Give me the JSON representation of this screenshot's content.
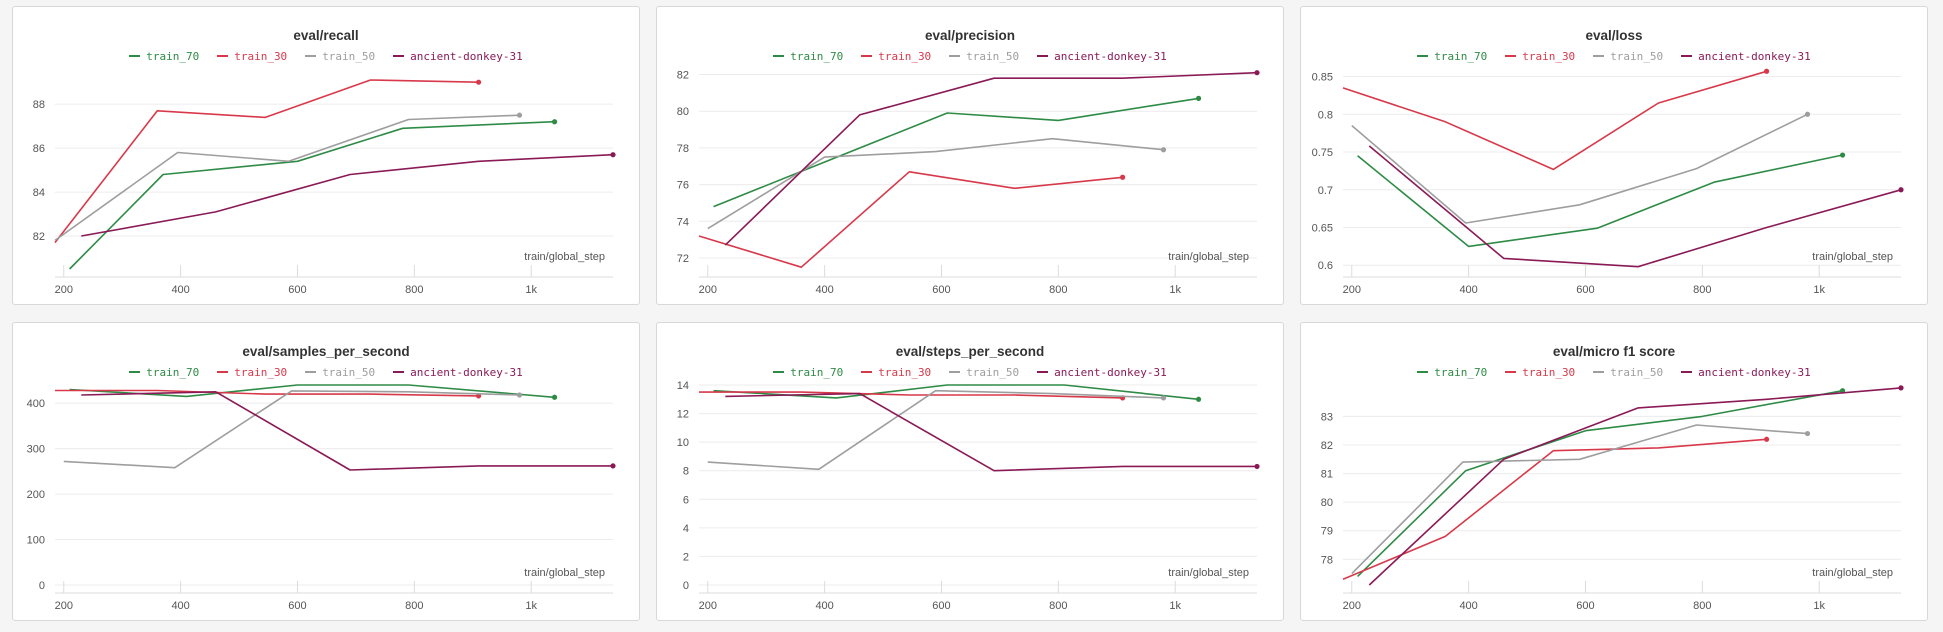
{
  "colors": {
    "train_70": "#2e8b46",
    "train_30": "#d8394a",
    "train_50": "#9e9e9e",
    "ancient-donkey-31": "#8a1a56"
  },
  "chart_data": [
    {
      "type": "line",
      "title": "eval/recall",
      "xlabel": "train/global_step",
      "xlim": [
        185,
        1140
      ],
      "ylim": [
        80.5,
        89.6
      ],
      "xticks": [
        200,
        400,
        600,
        800,
        1000
      ],
      "xtick_labels": [
        "200",
        "400",
        "600",
        "800",
        "1k"
      ],
      "yticks": [
        82,
        84,
        86,
        88
      ],
      "legend": [
        "train_70",
        "train_30",
        "train_50",
        "ancient-donkey-31"
      ],
      "series": [
        {
          "name": "train_70",
          "x": [
            210,
            370,
            600,
            780,
            1040
          ],
          "y": [
            80.5,
            84.8,
            85.4,
            86.9,
            87.2
          ]
        },
        {
          "name": "train_30",
          "x": [
            185,
            360,
            545,
            725,
            910
          ],
          "y": [
            81.7,
            87.7,
            87.4,
            89.1,
            89.0
          ]
        },
        {
          "name": "train_50",
          "x": [
            185,
            395,
            585,
            790,
            980
          ],
          "y": [
            81.8,
            85.8,
            85.4,
            87.3,
            87.5
          ]
        },
        {
          "name": "ancient-donkey-31",
          "x": [
            230,
            460,
            690,
            910,
            1140
          ],
          "y": [
            82.0,
            83.1,
            84.8,
            85.4,
            85.7
          ]
        }
      ]
    },
    {
      "type": "line",
      "title": "eval/precision",
      "xlabel": "train/global_step",
      "xlim": [
        185,
        1140
      ],
      "ylim": [
        71.4,
        82.3
      ],
      "xticks": [
        200,
        400,
        600,
        800,
        1000
      ],
      "xtick_labels": [
        "200",
        "400",
        "600",
        "800",
        "1k"
      ],
      "yticks": [
        72,
        74,
        76,
        78,
        80,
        82
      ],
      "legend": [
        "train_70",
        "train_30",
        "train_50",
        "ancient-donkey-31"
      ],
      "series": [
        {
          "name": "train_70",
          "x": [
            210,
            390,
            610,
            800,
            1040
          ],
          "y": [
            74.8,
            77.1,
            79.9,
            79.5,
            80.7
          ]
        },
        {
          "name": "train_30",
          "x": [
            185,
            360,
            545,
            725,
            910
          ],
          "y": [
            73.2,
            71.5,
            76.7,
            75.8,
            76.4
          ]
        },
        {
          "name": "train_50",
          "x": [
            200,
            400,
            590,
            790,
            980
          ],
          "y": [
            73.6,
            77.5,
            77.8,
            78.5,
            77.9
          ]
        },
        {
          "name": "ancient-donkey-31",
          "x": [
            230,
            460,
            690,
            910,
            1140
          ],
          "y": [
            72.7,
            79.8,
            81.8,
            81.8,
            82.1
          ]
        }
      ]
    },
    {
      "type": "line",
      "title": "eval/loss",
      "xlabel": "train/global_step",
      "xlim": [
        185,
        1140
      ],
      "ylim": [
        0.595,
        0.86
      ],
      "xticks": [
        200,
        400,
        600,
        800,
        1000
      ],
      "xtick_labels": [
        "200",
        "400",
        "600",
        "800",
        "1k"
      ],
      "yticks": [
        0.6,
        0.65,
        0.7,
        0.75,
        0.8,
        0.85
      ],
      "ytick_labels": [
        "0.6",
        "0.65",
        "0.7",
        "0.75",
        "0.8",
        "0.85"
      ],
      "legend": [
        "train_70",
        "train_30",
        "train_50",
        "ancient-donkey-31"
      ],
      "series": [
        {
          "name": "train_70",
          "x": [
            210,
            400,
            620,
            820,
            1040
          ],
          "y": [
            0.745,
            0.625,
            0.649,
            0.71,
            0.746
          ]
        },
        {
          "name": "train_30",
          "x": [
            185,
            360,
            545,
            725,
            910
          ],
          "y": [
            0.835,
            0.79,
            0.727,
            0.815,
            0.857
          ]
        },
        {
          "name": "train_50",
          "x": [
            200,
            395,
            590,
            790,
            980
          ],
          "y": [
            0.785,
            0.656,
            0.68,
            0.728,
            0.8
          ]
        },
        {
          "name": "ancient-donkey-31",
          "x": [
            230,
            460,
            690,
            910,
            1140
          ],
          "y": [
            0.758,
            0.609,
            0.598,
            0.65,
            0.7
          ]
        }
      ]
    },
    {
      "type": "line",
      "title": "eval/samples_per_second",
      "xlabel": "train/global_step",
      "xlim": [
        185,
        1140
      ],
      "ylim": [
        0,
        440
      ],
      "xticks": [
        200,
        400,
        600,
        800,
        1000
      ],
      "xtick_labels": [
        "200",
        "400",
        "600",
        "800",
        "1k"
      ],
      "yticks": [
        0,
        100,
        200,
        300,
        400
      ],
      "legend": [
        "train_70",
        "train_30",
        "train_50",
        "ancient-donkey-31"
      ],
      "series": [
        {
          "name": "train_70",
          "x": [
            210,
            410,
            600,
            790,
            1040
          ],
          "y": [
            430,
            415,
            440,
            440,
            413
          ]
        },
        {
          "name": "train_30",
          "x": [
            185,
            360,
            545,
            725,
            910
          ],
          "y": [
            428,
            428,
            420,
            420,
            416
          ]
        },
        {
          "name": "train_50",
          "x": [
            200,
            390,
            590,
            790,
            980
          ],
          "y": [
            272,
            258,
            427,
            425,
            418
          ]
        },
        {
          "name": "ancient-donkey-31",
          "x": [
            230,
            460,
            690,
            910,
            1140
          ],
          "y": [
            418,
            425,
            253,
            262,
            262
          ]
        }
      ]
    },
    {
      "type": "line",
      "title": "eval/steps_per_second",
      "xlabel": "train/global_step",
      "xlim": [
        185,
        1140
      ],
      "ylim": [
        0,
        14
      ],
      "xticks": [
        200,
        400,
        600,
        800,
        1000
      ],
      "xtick_labels": [
        "200",
        "400",
        "600",
        "800",
        "1k"
      ],
      "yticks": [
        0,
        2,
        4,
        6,
        8,
        10,
        12,
        14
      ],
      "legend": [
        "train_70",
        "train_30",
        "train_50",
        "ancient-donkey-31"
      ],
      "series": [
        {
          "name": "train_70",
          "x": [
            210,
            420,
            610,
            810,
            1040
          ],
          "y": [
            13.6,
            13.1,
            14.0,
            14.0,
            13.0
          ]
        },
        {
          "name": "train_30",
          "x": [
            185,
            360,
            545,
            725,
            910
          ],
          "y": [
            13.5,
            13.5,
            13.3,
            13.3,
            13.1
          ]
        },
        {
          "name": "train_50",
          "x": [
            200,
            390,
            590,
            790,
            980
          ],
          "y": [
            8.6,
            8.1,
            13.6,
            13.4,
            13.1
          ]
        },
        {
          "name": "ancient-donkey-31",
          "x": [
            230,
            460,
            690,
            910,
            1140
          ],
          "y": [
            13.2,
            13.4,
            8.0,
            8.3,
            8.3
          ]
        }
      ]
    },
    {
      "type": "line",
      "title": "eval/micro f1 score",
      "xlabel": "train/global_step",
      "xlim": [
        185,
        1140
      ],
      "ylim": [
        77.1,
        84.1
      ],
      "xticks": [
        200,
        400,
        600,
        800,
        1000
      ],
      "xtick_labels": [
        "200",
        "400",
        "600",
        "800",
        "1k"
      ],
      "yticks": [
        78,
        79,
        80,
        81,
        82,
        83
      ],
      "legend": [
        "train_70",
        "train_30",
        "train_50",
        "ancient-donkey-31"
      ],
      "series": [
        {
          "name": "train_70",
          "x": [
            210,
            395,
            600,
            800,
            1040
          ],
          "y": [
            77.4,
            81.1,
            82.5,
            83.0,
            83.9
          ]
        },
        {
          "name": "train_30",
          "x": [
            185,
            360,
            545,
            725,
            910
          ],
          "y": [
            77.3,
            78.8,
            81.8,
            81.9,
            82.2
          ]
        },
        {
          "name": "train_50",
          "x": [
            200,
            390,
            590,
            790,
            980
          ],
          "y": [
            77.5,
            81.4,
            81.5,
            82.7,
            82.4
          ]
        },
        {
          "name": "ancient-donkey-31",
          "x": [
            230,
            460,
            690,
            910,
            1140
          ],
          "y": [
            77.1,
            81.5,
            83.3,
            83.6,
            84.0
          ]
        }
      ]
    }
  ]
}
